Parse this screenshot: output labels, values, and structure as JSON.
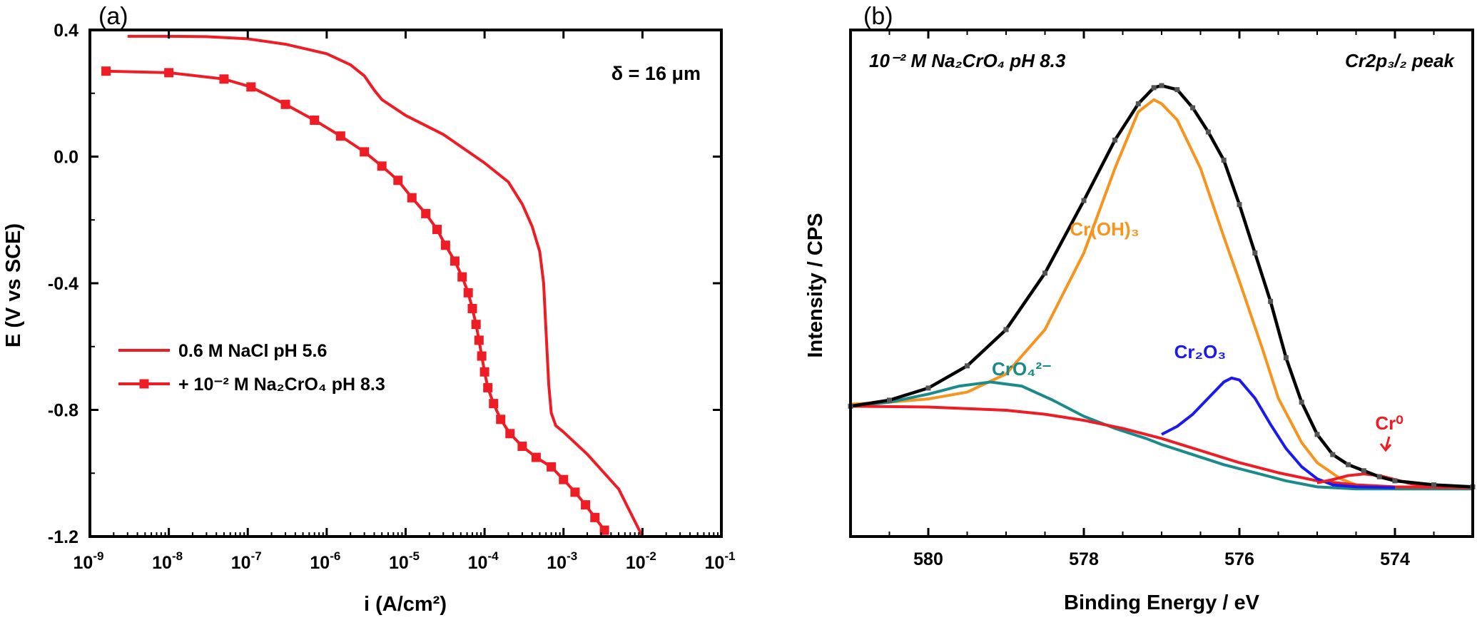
{
  "chart_data": [
    {
      "panel_label": "(a)",
      "type": "line",
      "xlabel": "i (A/cm²)",
      "ylabel": "E (V vs SCE)",
      "x_scale": "log",
      "xlim": [
        1e-09,
        0.1
      ],
      "ylim": [
        -1.2,
        0.4
      ],
      "x_ticks": [
        1e-09,
        1e-08,
        1e-07,
        1e-06,
        1e-05,
        0.0001,
        0.001,
        0.01,
        0.1
      ],
      "x_tick_exponents": [
        "-9",
        "-8",
        "-7",
        "-6",
        "-5",
        "-4",
        "-3",
        "-2",
        "-1"
      ],
      "x_tick_base": "10",
      "y_ticks": [
        -1.2,
        -0.8,
        -0.4,
        0.0,
        0.4
      ],
      "y_tick_labels": [
        "-1.2",
        "-0.8",
        "-0.4",
        "0.0",
        "0.4"
      ],
      "annotation": "δ = 16 μm",
      "legend_position": "bottom-left",
      "color": "#ee1c25",
      "series": [
        {
          "name": "0.6 M NaCl pH 5.6",
          "marker": "none",
          "points": [
            [
              3e-09,
              0.38
            ],
            [
              1e-08,
              0.38
            ],
            [
              3e-08,
              0.379
            ],
            [
              1e-07,
              0.372
            ],
            [
              3e-07,
              0.355
            ],
            [
              1e-06,
              0.325
            ],
            [
              2e-06,
              0.29
            ],
            [
              3e-06,
              0.255
            ],
            [
              4e-06,
              0.21
            ],
            [
              5e-06,
              0.18
            ],
            [
              1e-05,
              0.13
            ],
            [
              3e-05,
              0.07
            ],
            [
              0.0001,
              -0.02
            ],
            [
              0.0002,
              -0.08
            ],
            [
              0.0003,
              -0.15
            ],
            [
              0.0004,
              -0.22
            ],
            [
              0.0005,
              -0.3
            ],
            [
              0.00056,
              -0.4
            ],
            [
              0.0006,
              -0.55
            ],
            [
              0.00065,
              -0.72
            ],
            [
              0.0007,
              -0.81
            ],
            [
              0.0008,
              -0.85
            ],
            [
              0.001,
              -0.87
            ],
            [
              0.002,
              -0.94
            ],
            [
              0.005,
              -1.05
            ],
            [
              0.01,
              -1.2
            ]
          ]
        },
        {
          "name": "+ 10⁻² M Na₂CrO₄ pH 8.3",
          "marker": "square",
          "points": [
            [
              1.6e-09,
              0.27
            ],
            [
              1e-08,
              0.265
            ],
            [
              5e-08,
              0.245
            ],
            [
              1.1e-07,
              0.22
            ],
            [
              3e-07,
              0.165
            ],
            [
              7e-07,
              0.115
            ],
            [
              1.5e-06,
              0.065
            ],
            [
              3e-06,
              0.015
            ],
            [
              5e-06,
              -0.03
            ],
            [
              8e-06,
              -0.075
            ],
            [
              1.2e-05,
              -0.13
            ],
            [
              1.8e-05,
              -0.18
            ],
            [
              2.5e-05,
              -0.23
            ],
            [
              3.2e-05,
              -0.28
            ],
            [
              4.2e-05,
              -0.33
            ],
            [
              5.2e-05,
              -0.38
            ],
            [
              6.2e-05,
              -0.43
            ],
            [
              7e-05,
              -0.48
            ],
            [
              7.8e-05,
              -0.53
            ],
            [
              8.5e-05,
              -0.58
            ],
            [
              9.2e-05,
              -0.63
            ],
            [
              0.0001,
              -0.68
            ],
            [
              0.00011,
              -0.73
            ],
            [
              0.00013,
              -0.78
            ],
            [
              0.00016,
              -0.83
            ],
            [
              0.00021,
              -0.875
            ],
            [
              0.0003,
              -0.915
            ],
            [
              0.00045,
              -0.95
            ],
            [
              0.0007,
              -0.98
            ],
            [
              0.001,
              -1.02
            ],
            [
              0.0014,
              -1.06
            ],
            [
              0.0019,
              -1.1
            ],
            [
              0.0025,
              -1.14
            ],
            [
              0.0033,
              -1.18
            ]
          ]
        }
      ]
    },
    {
      "panel_label": "(b)",
      "type": "line",
      "xlabel": "Binding Energy / eV",
      "ylabel": "Intensity / CPS",
      "xlim": [
        581,
        573
      ],
      "x_reversed": true,
      "x_ticks": [
        580,
        578,
        576,
        574
      ],
      "y_ticks": [],
      "y_units": "arbitrary",
      "ylim": [
        0,
        1.2
      ],
      "title_left": "10⁻² M Na₂CrO₄ pH 8.3",
      "title_right": "Cr2p₃/₂ peak",
      "annotations": [
        {
          "text": "Cr(OH)₃",
          "color": "#f7941d"
        },
        {
          "text": "CrO₄²⁻",
          "color": "#1a8a8a"
        },
        {
          "text": "Cr₂O₃",
          "color": "#1a1aee"
        },
        {
          "text": "Cr⁰",
          "color": "#ee1c25"
        }
      ],
      "series": [
        {
          "name": "Cr(OH)₃",
          "color": "#f7941d",
          "points": [
            [
              581,
              0.245
            ],
            [
              580.5,
              0.25
            ],
            [
              580,
              0.258
            ],
            [
              579.5,
              0.275
            ],
            [
              579,
              0.32
            ],
            [
              578.5,
              0.43
            ],
            [
              578,
              0.62
            ],
            [
              577.6,
              0.83
            ],
            [
              577.3,
              0.97
            ],
            [
              577.1,
              1.0
            ],
            [
              577,
              0.99
            ],
            [
              576.8,
              0.95
            ],
            [
              576.5,
              0.83
            ],
            [
              576.2,
              0.66
            ],
            [
              576,
              0.55
            ],
            [
              575.7,
              0.38
            ],
            [
              575.5,
              0.26
            ],
            [
              575.2,
              0.15
            ],
            [
              575,
              0.1
            ],
            [
              574.7,
              0.06
            ],
            [
              574.5,
              0.045
            ],
            [
              574,
              0.035
            ],
            [
              573,
              0.035
            ]
          ]
        },
        {
          "name": "CrO₄²⁻",
          "color": "#1a8a8a",
          "points": [
            [
              581,
              0.24
            ],
            [
              580.5,
              0.25
            ],
            [
              580,
              0.27
            ],
            [
              579.6,
              0.29
            ],
            [
              579.2,
              0.3
            ],
            [
              578.8,
              0.29
            ],
            [
              578.4,
              0.255
            ],
            [
              578,
              0.215
            ],
            [
              577.6,
              0.185
            ],
            [
              577.2,
              0.16
            ],
            [
              577,
              0.145
            ],
            [
              576.6,
              0.12
            ],
            [
              576.2,
              0.095
            ],
            [
              575.8,
              0.075
            ],
            [
              575.4,
              0.055
            ],
            [
              575,
              0.04
            ],
            [
              574.5,
              0.035
            ],
            [
              573,
              0.035
            ]
          ]
        },
        {
          "name": "background",
          "color": "#ee1c25",
          "points": [
            [
              581,
              0.24
            ],
            [
              580,
              0.238
            ],
            [
              579,
              0.23
            ],
            [
              578.5,
              0.22
            ],
            [
              578,
              0.205
            ],
            [
              577.5,
              0.185
            ],
            [
              577,
              0.16
            ],
            [
              576.5,
              0.13
            ],
            [
              576,
              0.1
            ],
            [
              575.5,
              0.075
            ],
            [
              575,
              0.055
            ],
            [
              574.5,
              0.045
            ],
            [
              574,
              0.04
            ],
            [
              573,
              0.038
            ]
          ]
        },
        {
          "name": "Cr₂O₃",
          "color": "#1a1aee",
          "points": [
            [
              577,
              0.17
            ],
            [
              576.8,
              0.19
            ],
            [
              576.6,
              0.22
            ],
            [
              576.4,
              0.26
            ],
            [
              576.2,
              0.3
            ],
            [
              576.1,
              0.31
            ],
            [
              576,
              0.305
            ],
            [
              575.8,
              0.26
            ],
            [
              575.6,
              0.195
            ],
            [
              575.4,
              0.135
            ],
            [
              575.2,
              0.09
            ],
            [
              575,
              0.06
            ],
            [
              574.8,
              0.045
            ],
            [
              574.5,
              0.04
            ],
            [
              574,
              0.038
            ]
          ]
        },
        {
          "name": "Cr⁰",
          "color": "#ee1c25",
          "points": [
            [
              575,
              0.05
            ],
            [
              574.8,
              0.058
            ],
            [
              574.6,
              0.068
            ],
            [
              574.4,
              0.072
            ],
            [
              574.2,
              0.068
            ],
            [
              574,
              0.058
            ],
            [
              573.8,
              0.048
            ],
            [
              573.5,
              0.04
            ],
            [
              573,
              0.038
            ]
          ]
        },
        {
          "name": "envelope",
          "color": "#000000",
          "markers": "small-squares",
          "points": [
            [
              581,
              0.24
            ],
            [
              580.5,
              0.255
            ],
            [
              580,
              0.285
            ],
            [
              579.5,
              0.34
            ],
            [
              579,
              0.43
            ],
            [
              578.5,
              0.57
            ],
            [
              578,
              0.75
            ],
            [
              577.6,
              0.9
            ],
            [
              577.3,
              0.99
            ],
            [
              577.1,
              1.03
            ],
            [
              577,
              1.035
            ],
            [
              576.8,
              1.025
            ],
            [
              576.6,
              0.98
            ],
            [
              576.4,
              0.92
            ],
            [
              576.2,
              0.85
            ],
            [
              576,
              0.74
            ],
            [
              575.8,
              0.62
            ],
            [
              575.6,
              0.5
            ],
            [
              575.4,
              0.36
            ],
            [
              575.2,
              0.25
            ],
            [
              575,
              0.17
            ],
            [
              574.8,
              0.12
            ],
            [
              574.6,
              0.095
            ],
            [
              574.4,
              0.08
            ],
            [
              574.2,
              0.065
            ],
            [
              574,
              0.055
            ],
            [
              573.5,
              0.045
            ],
            [
              573,
              0.04
            ]
          ]
        }
      ]
    }
  ]
}
